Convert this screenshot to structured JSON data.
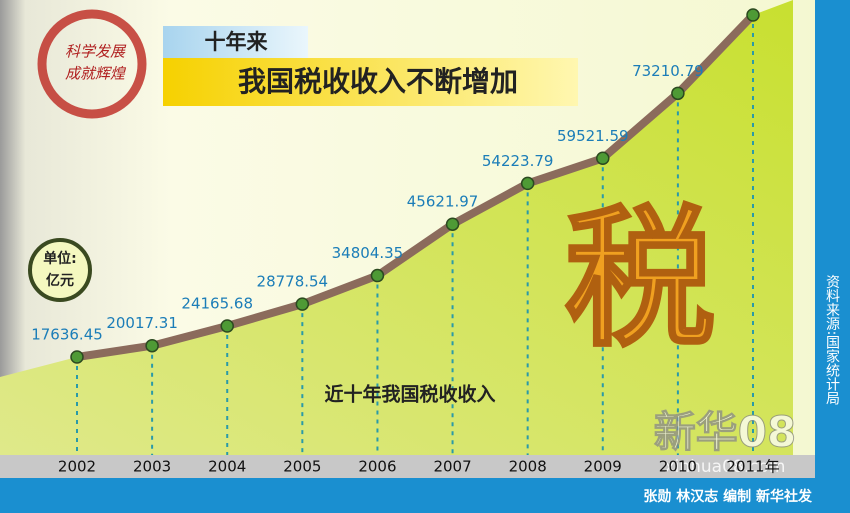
{
  "badge": [
    "科学发展",
    "成就辉煌"
  ],
  "header": {
    "kicker": "十年来",
    "title": "我国税收收入不断增加"
  },
  "unit": [
    "单位:",
    "亿元"
  ],
  "graphic": "税",
  "source": "资料来源:国家统计局",
  "credit": "张勋 林汉志 编制 新华社发",
  "watermark": [
    "新华08",
    "xinhua08.com"
  ],
  "chart_data": {
    "type": "line",
    "subtitle": "近十年我国税收收入",
    "categories": [
      "2002",
      "2003",
      "2004",
      "2005",
      "2006",
      "2007",
      "2008",
      "2009",
      "2010",
      "2011年"
    ],
    "values": [
      17636.45,
      20017.31,
      24165.68,
      28778.54,
      34804.35,
      45621.97,
      54223.79,
      59521.59,
      73210.79,
      89720
    ],
    "color": "#8b6b5c",
    "marker_color": "#4e9a35",
    "label_color": "#1b7db8"
  }
}
